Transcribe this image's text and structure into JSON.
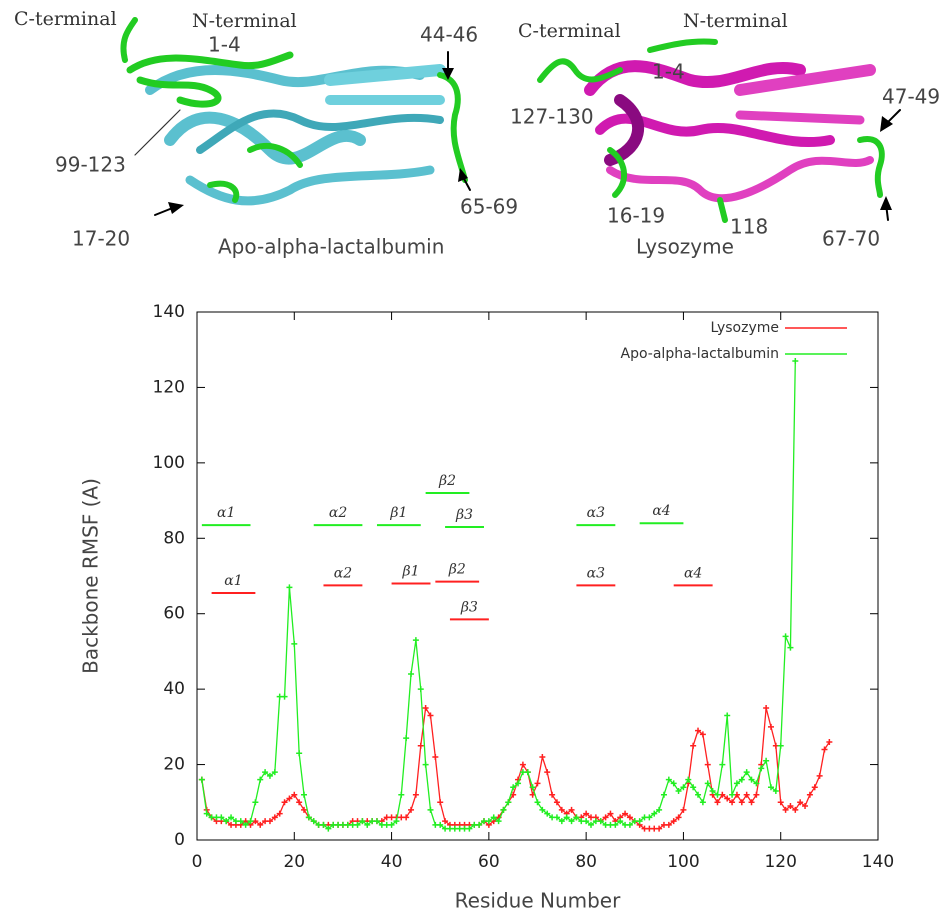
{
  "structures": [
    {
      "title": "Apo-alpha-lactalbumin",
      "labels": [
        "C-terminal",
        "N-terminal",
        "1-4",
        "44-46",
        "99-123",
        "17-20",
        "65-69"
      ]
    },
    {
      "title": "Lysozyme",
      "labels": [
        "C-terminal",
        "N-terminal",
        "1-4",
        "127-130",
        "47-49",
        "16-19",
        "118",
        "67-70"
      ]
    }
  ],
  "chart_data": {
    "type": "line",
    "x_label": "Residue Number",
    "y_label": "Backbone RMSF (A)",
    "xlim": [
      0,
      140
    ],
    "ylim": [
      0,
      140
    ],
    "xticks": [
      0,
      20,
      40,
      60,
      80,
      100,
      120,
      140
    ],
    "yticks": [
      0,
      20,
      40,
      60,
      80,
      100,
      120,
      140
    ],
    "legend": "top-right",
    "series": [
      {
        "name": "Lysozyme",
        "color": "#ff2020",
        "x": [
          1,
          2,
          3,
          4,
          5,
          6,
          7,
          8,
          9,
          10,
          11,
          12,
          13,
          14,
          15,
          16,
          17,
          18,
          19,
          20,
          21,
          22,
          23,
          24,
          25,
          26,
          27,
          28,
          29,
          30,
          31,
          32,
          33,
          34,
          35,
          36,
          37,
          38,
          39,
          40,
          41,
          42,
          43,
          44,
          45,
          46,
          47,
          48,
          49,
          50,
          51,
          52,
          53,
          54,
          55,
          56,
          57,
          58,
          59,
          60,
          61,
          62,
          63,
          64,
          65,
          66,
          67,
          68,
          69,
          70,
          71,
          72,
          73,
          74,
          75,
          76,
          77,
          78,
          79,
          80,
          81,
          82,
          83,
          84,
          85,
          86,
          87,
          88,
          89,
          90,
          91,
          92,
          93,
          94,
          95,
          96,
          97,
          98,
          99,
          100,
          101,
          102,
          103,
          104,
          105,
          106,
          107,
          108,
          109,
          110,
          111,
          112,
          113,
          114,
          115,
          116,
          117,
          118,
          119,
          120,
          121,
          122,
          123,
          124,
          125,
          126,
          127,
          128,
          129,
          130
        ],
        "values": [
          16,
          8,
          6,
          5,
          5,
          5,
          4,
          4,
          4,
          5,
          4,
          5,
          4,
          5,
          5,
          6,
          7,
          10,
          11,
          12,
          10,
          8,
          6,
          5,
          4,
          4,
          4,
          4,
          4,
          4,
          4,
          5,
          5,
          5,
          5,
          5,
          5,
          5,
          6,
          6,
          6,
          6,
          6,
          8,
          12,
          25,
          35,
          33,
          22,
          10,
          5,
          4,
          4,
          4,
          4,
          4,
          4,
          4,
          5,
          4,
          5,
          6,
          8,
          10,
          12,
          16,
          20,
          18,
          12,
          15,
          22,
          18,
          12,
          10,
          8,
          7,
          8,
          6,
          6,
          7,
          6,
          6,
          5,
          6,
          7,
          5,
          6,
          7,
          6,
          5,
          4,
          3,
          3,
          3,
          3,
          4,
          4,
          5,
          6,
          8,
          15,
          25,
          29,
          28,
          20,
          12,
          10,
          12,
          11,
          10,
          12,
          10,
          12,
          10,
          12,
          20,
          35,
          30,
          25,
          10,
          8,
          9,
          8,
          10,
          9,
          12,
          14,
          17,
          24,
          26
        ]
      },
      {
        "name": "Apo-alpha-lactalbumin",
        "color": "#22ee22",
        "x": [
          1,
          2,
          3,
          4,
          5,
          6,
          7,
          8,
          9,
          10,
          11,
          12,
          13,
          14,
          15,
          16,
          17,
          18,
          19,
          20,
          21,
          22,
          23,
          24,
          25,
          26,
          27,
          28,
          29,
          30,
          31,
          32,
          33,
          34,
          35,
          36,
          37,
          38,
          39,
          40,
          41,
          42,
          43,
          44,
          45,
          46,
          47,
          48,
          49,
          50,
          51,
          52,
          53,
          54,
          55,
          56,
          57,
          58,
          59,
          60,
          61,
          62,
          63,
          64,
          65,
          66,
          67,
          68,
          69,
          70,
          71,
          72,
          73,
          74,
          75,
          76,
          77,
          78,
          79,
          80,
          81,
          82,
          83,
          84,
          85,
          86,
          87,
          88,
          89,
          90,
          91,
          92,
          93,
          94,
          95,
          96,
          97,
          98,
          99,
          100,
          101,
          102,
          103,
          104,
          105,
          106,
          107,
          108,
          109,
          110,
          111,
          112,
          113,
          114,
          115,
          116,
          117,
          118,
          119,
          120,
          121,
          122,
          123
        ],
        "values": [
          16,
          7,
          6,
          6,
          6,
          5,
          6,
          5,
          5,
          4,
          5,
          10,
          16,
          18,
          17,
          18,
          38,
          38,
          67,
          52,
          23,
          12,
          6,
          5,
          4,
          4,
          3,
          4,
          4,
          4,
          4,
          4,
          4,
          5,
          4,
          5,
          5,
          4,
          4,
          4,
          5,
          12,
          27,
          44,
          53,
          40,
          20,
          8,
          4,
          4,
          3,
          3,
          3,
          3,
          3,
          3,
          4,
          4,
          5,
          5,
          6,
          5,
          8,
          10,
          14,
          15,
          18,
          18,
          14,
          10,
          8,
          7,
          6,
          6,
          5,
          6,
          5,
          6,
          5,
          5,
          4,
          5,
          5,
          4,
          4,
          4,
          5,
          4,
          4,
          5,
          5,
          6,
          6,
          7,
          8,
          12,
          16,
          15,
          13,
          14,
          16,
          14,
          12,
          10,
          15,
          13,
          12,
          20,
          33,
          12,
          15,
          16,
          18,
          16,
          15,
          19,
          21,
          14,
          13,
          25,
          54,
          51,
          127
        ]
      }
    ],
    "annotations": [
      {
        "label": "α1",
        "x": [
          1,
          11
        ],
        "y": 83.5,
        "color": "#22ee22"
      },
      {
        "label": "α2",
        "x": [
          24,
          34
        ],
        "y": 83.5,
        "color": "#22ee22"
      },
      {
        "label": "β1",
        "x": [
          37,
          46
        ],
        "y": 83.5,
        "color": "#22ee22"
      },
      {
        "label": "β2",
        "x": [
          47,
          56
        ],
        "y": 92,
        "color": "#22ee22"
      },
      {
        "label": "β3",
        "x": [
          51,
          59
        ],
        "y": 83,
        "color": "#22ee22"
      },
      {
        "label": "α3",
        "x": [
          78,
          86
        ],
        "y": 83.5,
        "color": "#22ee22"
      },
      {
        "label": "α4",
        "x": [
          91,
          100
        ],
        "y": 84,
        "color": "#22ee22"
      },
      {
        "label": "α1",
        "x": [
          3,
          12
        ],
        "y": 65.5,
        "color": "#ff2020"
      },
      {
        "label": "α2",
        "x": [
          26,
          34
        ],
        "y": 67.5,
        "color": "#ff2020"
      },
      {
        "label": "β1",
        "x": [
          40,
          48
        ],
        "y": 68,
        "color": "#ff2020"
      },
      {
        "label": "β2",
        "x": [
          49,
          58
        ],
        "y": 68.5,
        "color": "#ff2020"
      },
      {
        "label": "β3",
        "x": [
          52,
          60
        ],
        "y": 58.5,
        "color": "#ff2020"
      },
      {
        "label": "α3",
        "x": [
          78,
          86
        ],
        "y": 67.5,
        "color": "#ff2020"
      },
      {
        "label": "α4",
        "x": [
          98,
          106
        ],
        "y": 67.5,
        "color": "#ff2020"
      }
    ]
  }
}
